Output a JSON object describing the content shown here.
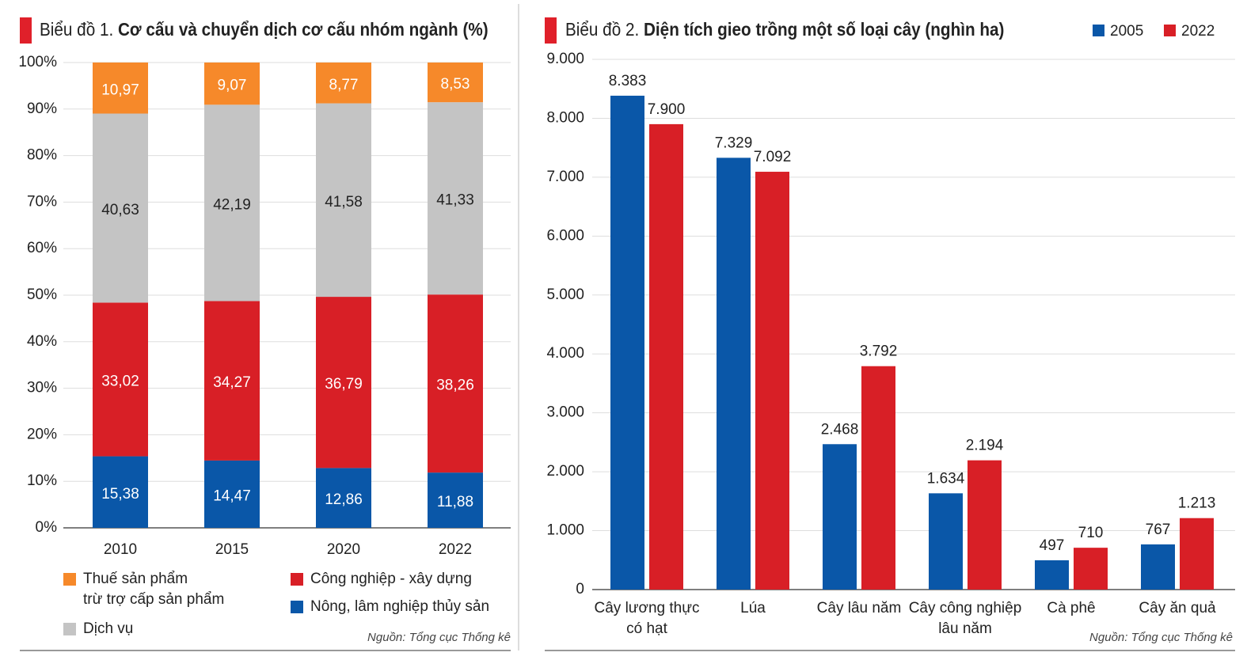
{
  "chart_data": [
    {
      "type": "stacked_bar",
      "label": "Biểu đồ 1.",
      "title": "Cơ cấu và chuyển dịch cơ cấu nhóm ngành (%)",
      "categories": [
        "2010",
        "2015",
        "2020",
        "2022"
      ],
      "series": [
        {
          "name": "Nông, lâm nghiệp thủy sản",
          "color": "#0a57a8",
          "label_color": "#ffffff",
          "values": [
            15.38,
            14.47,
            12.86,
            11.88
          ],
          "value_labels": [
            "15,38",
            "14,47",
            "12,86",
            "11,88"
          ]
        },
        {
          "name": "Công nghiệp - xây dựng",
          "color": "#d81f26",
          "label_color": "#ffffff",
          "values": [
            33.02,
            34.27,
            36.79,
            38.26
          ],
          "value_labels": [
            "33,02",
            "34,27",
            "36,79",
            "38,26"
          ]
        },
        {
          "name": "Dịch vụ",
          "color": "#c4c4c4",
          "label_color": "#222222",
          "values": [
            40.63,
            42.19,
            41.58,
            41.33
          ],
          "value_labels": [
            "40,63",
            "42,19",
            "41,58",
            "41,33"
          ]
        },
        {
          "name": "Thuế sản phẩm\ntrừ trợ cấp sản phẩm",
          "color": "#f6892a",
          "label_color": "#ffffff",
          "values": [
            10.97,
            9.07,
            8.77,
            8.53
          ],
          "value_labels": [
            "10,97",
            "9,07",
            "8,77",
            "8,53"
          ]
        }
      ],
      "ylim": [
        0,
        100
      ],
      "yticks": [
        {
          "value": 0,
          "label": "0%"
        },
        {
          "value": 10,
          "label": "10%"
        },
        {
          "value": 20,
          "label": "20%"
        },
        {
          "value": 30,
          "label": "30%"
        },
        {
          "value": 40,
          "label": "40%"
        },
        {
          "value": 50,
          "label": "50%"
        },
        {
          "value": 60,
          "label": "60%"
        },
        {
          "value": 70,
          "label": "70%"
        },
        {
          "value": 80,
          "label": "80%"
        },
        {
          "value": 90,
          "label": "90%"
        },
        {
          "value": 100,
          "label": "100%"
        }
      ],
      "grid": true,
      "source": "Nguồn: Tổng cục Thống kê"
    },
    {
      "type": "grouped_bar",
      "label": "Biểu đồ 2.",
      "title": "Diện tích gieo trồng một số loại cây (nghìn ha)",
      "categories": [
        "Cây lương thực\ncó hạt",
        "Lúa",
        "Cây lâu năm",
        "Cây công nghiệp\nlâu năm",
        "Cà phê",
        "Cây ăn quả"
      ],
      "series": [
        {
          "name": "2005",
          "color": "#0a57a8",
          "values": [
            8383,
            7329,
            2468,
            1634,
            497,
            767
          ],
          "value_labels": [
            "8.383",
            "7.329",
            "2.468",
            "1.634",
            "497",
            "767"
          ]
        },
        {
          "name": "2022",
          "color": "#d81f26",
          "values": [
            7900,
            7092,
            3792,
            2194,
            710,
            1213
          ],
          "value_labels": [
            "7.900",
            "7.092",
            "3.792",
            "2.194",
            "710",
            "1.213"
          ]
        }
      ],
      "ylim": [
        0,
        9000
      ],
      "yticks": [
        0,
        {
          "value": 1000,
          "label": "1.000"
        },
        {
          "value": 2000,
          "label": "2.000"
        },
        {
          "value": 3000,
          "label": "3.000"
        },
        {
          "value": 4000,
          "label": "4.000"
        },
        {
          "value": 5000,
          "label": "5.000"
        },
        {
          "value": 6000,
          "label": "6.000"
        },
        {
          "value": 7000,
          "label": "7.000"
        },
        {
          "value": 8000,
          "label": "8.000"
        },
        {
          "value": 9000,
          "label": "9.000"
        }
      ],
      "grid": true,
      "source": "Nguồn: Tổng cục Thống kê"
    }
  ]
}
